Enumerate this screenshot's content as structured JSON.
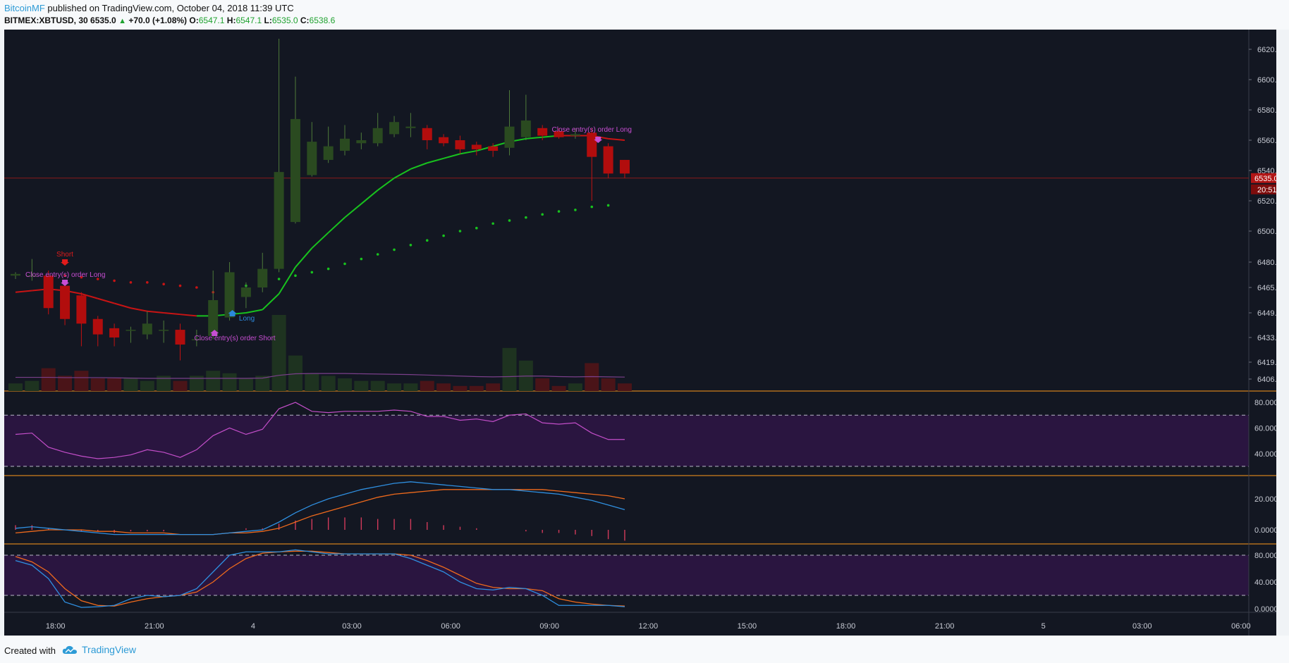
{
  "header": {
    "author": "BitcoinMF",
    "published_text": " published on TradingView.com, October 04, 2018 11:39 UTC",
    "symbol": "BITMEX:XBTUSD, 30",
    "last": "6535.0",
    "change": "+70.0 (+1.08%)",
    "o_label": "O:",
    "o_value": "6547.1",
    "h_label": "H:",
    "h_value": "6547.1",
    "l_label": "L:",
    "l_value": "6535.0",
    "c_label": "C:",
    "c_value": "6538.6"
  },
  "footer": {
    "created_with": "Created with",
    "brand": "TradingView"
  },
  "colors": {
    "background": "#131722",
    "bull": "#2a4a20",
    "bear": "#b20d0d",
    "ma_up": "#18c21e",
    "ma_down": "#c81414",
    "panel_divider": "#ff9a1a",
    "rsi_line": "#c34ec9",
    "macd_line": "#2f8fe0",
    "signal_line": "#ef6a1c",
    "annotation": "#c84ed3",
    "long_label": "#2b88dc",
    "short_label": "#e01b1b"
  },
  "chart_data": [
    {
      "type": "candlestick",
      "title": "",
      "x_ticks": [
        "18:00",
        "21:00",
        "4",
        "03:00",
        "06:00",
        "09:00",
        "12:00",
        "15:00",
        "18:00",
        "21:00",
        "5",
        "03:00",
        "06:00"
      ],
      "price_ticks": [
        "6620.0",
        "6600.0",
        "6580.0",
        "6560.0",
        "6540.0",
        "6520.0",
        "6500.0",
        "6480.0",
        "6465.0",
        "6449.0",
        "6433.0",
        "6419.0",
        "6406.0"
      ],
      "current_price": "6535.0",
      "countdown": "20:51",
      "candles": [
        {
          "o": 6472,
          "h": 6474,
          "l": 6470,
          "c": 6473
        },
        {
          "o": 6472,
          "h": 6482,
          "l": 6469,
          "c": 6472
        },
        {
          "o": 6472,
          "h": 6475,
          "l": 6448,
          "c": 6452
        },
        {
          "o": 6466,
          "h": 6469,
          "l": 6441,
          "c": 6445
        },
        {
          "o": 6460,
          "h": 6462,
          "l": 6428,
          "c": 6442
        },
        {
          "o": 6445,
          "h": 6447,
          "l": 6428,
          "c": 6435
        },
        {
          "o": 6439,
          "h": 6442,
          "l": 6428,
          "c": 6433
        },
        {
          "o": 6438,
          "h": 6440,
          "l": 6430,
          "c": 6438
        },
        {
          "o": 6435,
          "h": 6450,
          "l": 6432,
          "c": 6442
        },
        {
          "o": 6438,
          "h": 6444,
          "l": 6430,
          "c": 6438
        },
        {
          "o": 6438,
          "h": 6442,
          "l": 6420,
          "c": 6429
        },
        {
          "o": 6432,
          "h": 6438,
          "l": 6428,
          "c": 6432
        },
        {
          "o": 6434,
          "h": 6475,
          "l": 6432,
          "c": 6457
        },
        {
          "o": 6446,
          "h": 6480,
          "l": 6444,
          "c": 6474
        },
        {
          "o": 6459,
          "h": 6468,
          "l": 6452,
          "c": 6465
        },
        {
          "o": 6465,
          "h": 6486,
          "l": 6462,
          "c": 6476
        },
        {
          "o": 6476,
          "h": 6627,
          "l": 6474,
          "c": 6539
        },
        {
          "o": 6506,
          "h": 6602,
          "l": 6505,
          "c": 6574
        },
        {
          "o": 6537,
          "h": 6572,
          "l": 6536,
          "c": 6559
        },
        {
          "o": 6547,
          "h": 6569,
          "l": 6545,
          "c": 6556
        },
        {
          "o": 6553,
          "h": 6570,
          "l": 6550,
          "c": 6561
        },
        {
          "o": 6558,
          "h": 6565,
          "l": 6554,
          "c": 6560
        },
        {
          "o": 6558,
          "h": 6578,
          "l": 6556,
          "c": 6568
        },
        {
          "o": 6564,
          "h": 6576,
          "l": 6562,
          "c": 6572
        },
        {
          "o": 6568,
          "h": 6578,
          "l": 6562,
          "c": 6569
        },
        {
          "o": 6568,
          "h": 6570,
          "l": 6554,
          "c": 6560
        },
        {
          "o": 6562,
          "h": 6564,
          "l": 6556,
          "c": 6558
        },
        {
          "o": 6560,
          "h": 6563,
          "l": 6551,
          "c": 6554
        },
        {
          "o": 6557,
          "h": 6559,
          "l": 6550,
          "c": 6554
        },
        {
          "o": 6556,
          "h": 6558,
          "l": 6549,
          "c": 6553
        },
        {
          "o": 6555,
          "h": 6593,
          "l": 6550,
          "c": 6569
        },
        {
          "o": 6562,
          "h": 6590,
          "l": 6560,
          "c": 6573
        },
        {
          "o": 6568,
          "h": 6570,
          "l": 6560,
          "c": 6563
        },
        {
          "o": 6566,
          "h": 6568,
          "l": 6561,
          "c": 6562
        },
        {
          "o": 6563,
          "h": 6568,
          "l": 6561,
          "c": 6564
        },
        {
          "o": 6565,
          "h": 6568,
          "l": 6520,
          "c": 6549
        },
        {
          "o": 6556,
          "h": 6558,
          "l": 6535,
          "c": 6538
        },
        {
          "o": 6547,
          "h": 6547,
          "l": 6535,
          "c": 6538
        }
      ],
      "volume": [
        3,
        4,
        9,
        6,
        8,
        5,
        5,
        5,
        4,
        6,
        4,
        6,
        8,
        7,
        5,
        6,
        30,
        14,
        7,
        6,
        5,
        4,
        4,
        3,
        3,
        4,
        3,
        2,
        2,
        3,
        17,
        12,
        5,
        2,
        3,
        11,
        5,
        3
      ],
      "volume_ma": [
        5.4,
        5.4,
        5.4,
        5.3,
        5.3,
        5.3,
        5.2,
        5.1,
        5.0,
        5.0,
        5.0,
        5.0,
        5.0,
        5.0,
        5.0,
        5.1,
        6.2,
        6.8,
        6.9,
        6.9,
        6.9,
        6.8,
        6.7,
        6.6,
        6.5,
        6.3,
        6.1,
        5.9,
        5.7,
        5.6,
        5.7,
        5.9,
        5.9,
        5.7,
        5.6,
        5.7,
        5.6,
        5.5
      ],
      "ema": [
        6462,
        6463,
        6464,
        6463,
        6461,
        6458,
        6455,
        6452,
        6450,
        6449,
        6448,
        6447,
        6447,
        6448,
        6449,
        6451,
        6461,
        6477,
        6489,
        6499,
        6509,
        6518,
        6527,
        6535,
        6541,
        6545,
        6548,
        6551,
        6553,
        6556,
        6559,
        6561,
        6562,
        6563,
        6563,
        6563,
        6561,
        6560
      ],
      "sar": [
        null,
        null,
        null,
        6472,
        6471,
        6470,
        6469,
        6468,
        6468,
        6467,
        6466,
        6465,
        6462,
        6464,
        6466,
        6468,
        6470,
        6472,
        6474,
        6476,
        6479,
        6482,
        6485,
        6488,
        6491,
        6494,
        6497,
        6500,
        6502,
        6505,
        6507,
        6509,
        6511,
        6513,
        6514,
        6516,
        6517,
        null
      ],
      "annotations": [
        {
          "label": "Short",
          "bar": 3
        },
        {
          "label": "Close entry(s) order Long",
          "bar": 3
        },
        {
          "label": "Close entry(s) order Short",
          "bar": 13
        },
        {
          "label": "Long",
          "bar": 14
        },
        {
          "label": "Close entry(s) order Long",
          "bar": 36
        }
      ]
    },
    {
      "type": "line",
      "title": "",
      "ticks": [
        "80.0000",
        "60.0000",
        "40.0000"
      ],
      "band": [
        30,
        70
      ],
      "values": [
        55,
        56,
        45,
        41,
        38,
        36,
        37,
        39,
        43,
        41,
        37,
        43,
        54,
        60,
        55,
        59,
        75,
        80,
        73,
        72,
        73,
        73,
        73,
        74,
        73,
        69,
        69,
        66,
        67,
        65,
        70,
        71,
        64,
        63,
        64,
        56,
        51,
        51
      ]
    },
    {
      "type": "line",
      "title": "",
      "ticks": [
        "20.0000",
        "0.0000"
      ],
      "macd": [
        1,
        2,
        1,
        0,
        -1,
        -2,
        -3,
        -3,
        -3,
        -3,
        -3,
        -3,
        -3,
        -2,
        -1,
        0,
        5,
        11,
        16,
        20,
        23,
        26,
        28,
        30,
        31,
        30,
        29,
        28,
        27,
        26,
        26,
        25,
        24,
        23,
        21,
        19,
        16,
        13
      ],
      "signal": [
        -2,
        -1,
        0,
        0,
        0,
        -1,
        -1,
        -2,
        -2,
        -2,
        -3,
        -3,
        -3,
        -2,
        -2,
        -1,
        1,
        5,
        9,
        12,
        15,
        18,
        21,
        23,
        24,
        25,
        26,
        26,
        26,
        26,
        26,
        26,
        26,
        25,
        24,
        23,
        22,
        20
      ]
    },
    {
      "type": "line",
      "title": "",
      "ticks": [
        "80.0000",
        "40.0000",
        "0.0000"
      ],
      "band": [
        20,
        80
      ],
      "k": [
        72,
        65,
        45,
        10,
        2,
        3,
        5,
        15,
        20,
        18,
        20,
        30,
        55,
        80,
        85,
        85,
        85,
        88,
        85,
        82,
        82,
        82,
        82,
        82,
        75,
        65,
        55,
        40,
        30,
        28,
        32,
        30,
        20,
        5,
        5,
        5,
        5,
        3
      ],
      "d": [
        78,
        70,
        55,
        30,
        12,
        5,
        4,
        10,
        15,
        18,
        20,
        25,
        40,
        60,
        75,
        83,
        85,
        86,
        86,
        84,
        82,
        82,
        82,
        82,
        80,
        72,
        62,
        50,
        38,
        32,
        30,
        30,
        27,
        15,
        10,
        7,
        5,
        4
      ]
    }
  ]
}
